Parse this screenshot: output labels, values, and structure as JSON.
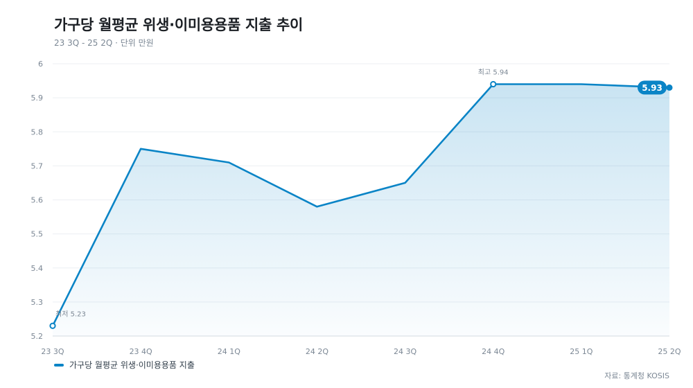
{
  "header": {
    "title": "가구당 월평균 위생·이미용용품 지출 추이",
    "subtitle": "23 3Q - 25 2Q · 단위 만원"
  },
  "legend": {
    "label": "가구당 월평균 위생·이미용용품 지출"
  },
  "source": "자료: 통계청 KOSIS",
  "colors": {
    "line": "#0a84c6",
    "fill": "#0a84c6",
    "grid": "#eceff3",
    "text": "#7b8794"
  },
  "chart_data": {
    "type": "area",
    "title": "가구당 월평균 위생·이미용용품 지출 추이",
    "subtitle": "23 3Q - 25 2Q · 단위 만원",
    "xlabel": "",
    "ylabel": "",
    "categories": [
      "23 3Q",
      "23 4Q",
      "24 1Q",
      "24 2Q",
      "24 3Q",
      "24 4Q",
      "25 1Q",
      "25 2Q"
    ],
    "series": [
      {
        "name": "가구당 월평균 위생·이미용용품 지출",
        "values": [
          5.23,
          5.75,
          5.71,
          5.58,
          5.65,
          5.94,
          5.94,
          5.93
        ]
      }
    ],
    "ylim": [
      5.2,
      6.0
    ],
    "yticks": [
      "5.2",
      "5.3",
      "5.4",
      "5.5",
      "5.6",
      "5.7",
      "5.8",
      "5.9",
      "6"
    ],
    "grid": true,
    "legend_position": "bottom-left",
    "annotations": {
      "min_label": "최저 5.23",
      "max_label": "최고 5.94",
      "last_label": "5.93"
    }
  }
}
